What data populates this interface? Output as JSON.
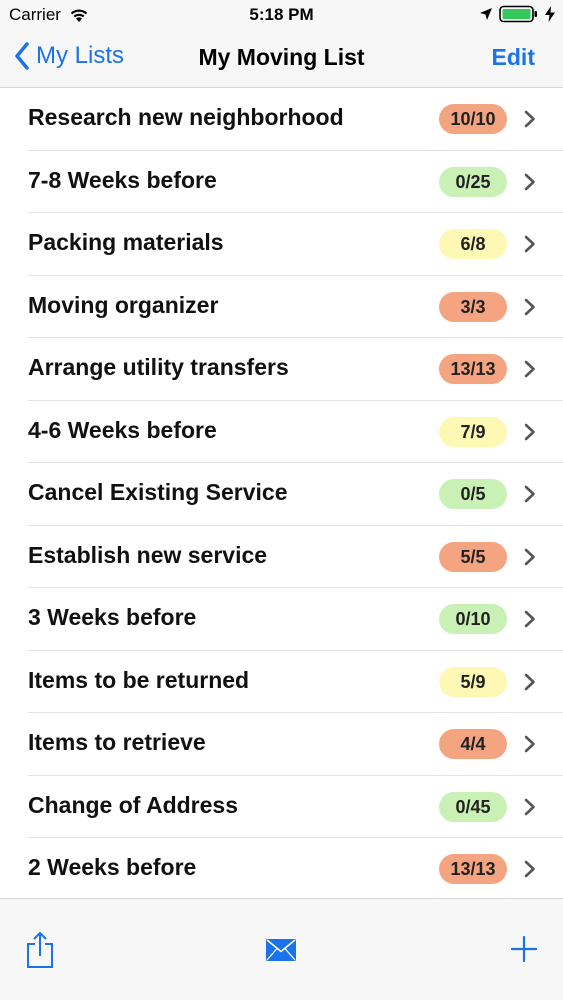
{
  "status_bar": {
    "carrier": "Carrier",
    "time": "5:18 PM"
  },
  "nav": {
    "back_label": "My Lists",
    "title": "My Moving List",
    "edit_label": "Edit"
  },
  "colors": {
    "accent": "#1a73e8",
    "badge_full": "#f4a481",
    "badge_partial": "#fdf8b4",
    "badge_empty": "#c9f0b5"
  },
  "lists": [
    {
      "label": "Research new neighborhood",
      "count": "10/10",
      "status": "full"
    },
    {
      "label": "7-8 Weeks before",
      "count": "0/25",
      "status": "empty"
    },
    {
      "label": "Packing materials",
      "count": "6/8",
      "status": "partial"
    },
    {
      "label": "Moving organizer",
      "count": "3/3",
      "status": "full"
    },
    {
      "label": "Arrange utility transfers",
      "count": "13/13",
      "status": "full"
    },
    {
      "label": "4-6 Weeks before",
      "count": "7/9",
      "status": "partial"
    },
    {
      "label": "Cancel Existing Service",
      "count": "0/5",
      "status": "empty"
    },
    {
      "label": "Establish new service",
      "count": "5/5",
      "status": "full"
    },
    {
      "label": "3 Weeks before",
      "count": "0/10",
      "status": "empty"
    },
    {
      "label": "Items to be returned",
      "count": "5/9",
      "status": "partial"
    },
    {
      "label": "Items to retrieve",
      "count": "4/4",
      "status": "full"
    },
    {
      "label": "Change of Address",
      "count": "0/45",
      "status": "empty"
    },
    {
      "label": "2 Weeks before",
      "count": "13/13",
      "status": "full"
    }
  ],
  "toolbar": {
    "icons": [
      "share-icon",
      "mail-icon",
      "add-icon"
    ]
  }
}
